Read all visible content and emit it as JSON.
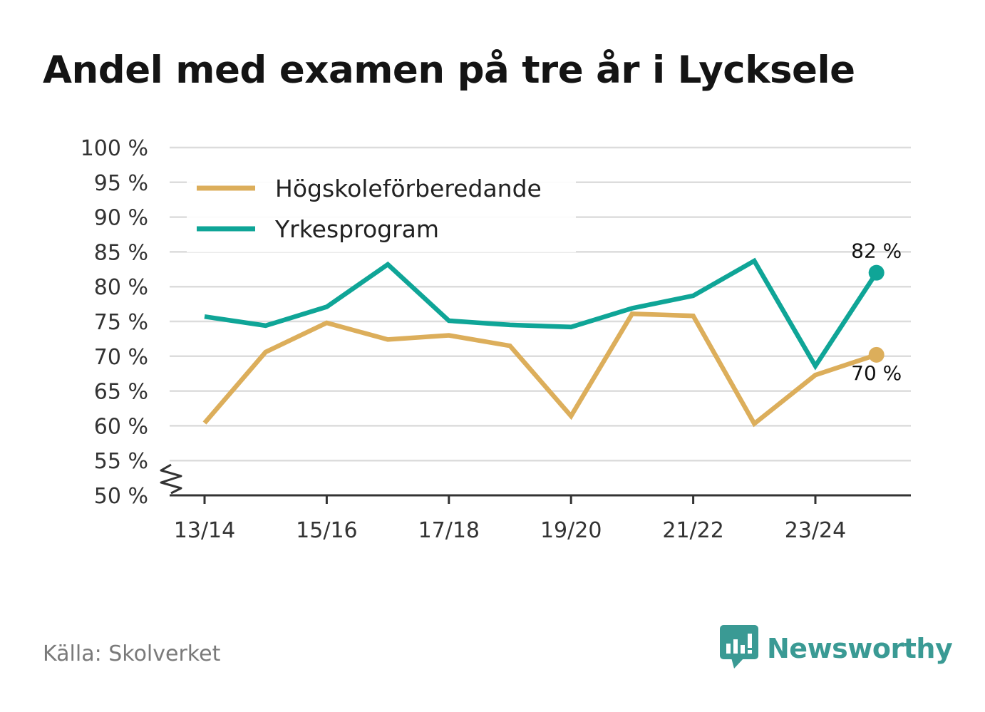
{
  "title": "Andel med examen på tre år i Lycksele",
  "source": "Källa: Skolverket",
  "brand": {
    "name": "Newsworthy",
    "icon": "newsworthy-logo-icon",
    "color": "#3a9a94"
  },
  "chart_data": {
    "type": "line",
    "title": "Andel med examen på tre år i Lycksele",
    "xlabel": "",
    "ylabel": "",
    "ylim": [
      50,
      100
    ],
    "y_ticks": [
      50,
      55,
      60,
      65,
      70,
      75,
      80,
      85,
      90,
      95,
      100
    ],
    "y_tick_suffix": " %",
    "y_axis_break": true,
    "grid": true,
    "legend_position": "top-left",
    "categories": [
      "13/14",
      "14/15",
      "15/16",
      "16/17",
      "17/18",
      "18/19",
      "19/20",
      "20/21",
      "21/22",
      "22/23",
      "23/24",
      "24/25"
    ],
    "x_tick_labels": [
      "13/14",
      "",
      "15/16",
      "",
      "17/18",
      "",
      "19/20",
      "",
      "21/22",
      "",
      "23/24",
      ""
    ],
    "series": [
      {
        "name": "Högskoleförberedande",
        "color": "#dcae5b",
        "values": [
          60.4,
          70.6,
          74.8,
          72.4,
          73.0,
          71.5,
          61.4,
          76.1,
          75.8,
          60.3,
          67.3,
          70.2
        ],
        "end_label": "70 %"
      },
      {
        "name": "Yrkesprogram",
        "color": "#0fa597",
        "values": [
          75.7,
          74.4,
          77.1,
          83.2,
          75.1,
          74.5,
          74.2,
          76.9,
          78.7,
          83.7,
          68.6,
          82.0
        ],
        "end_label": "82 %"
      }
    ]
  }
}
